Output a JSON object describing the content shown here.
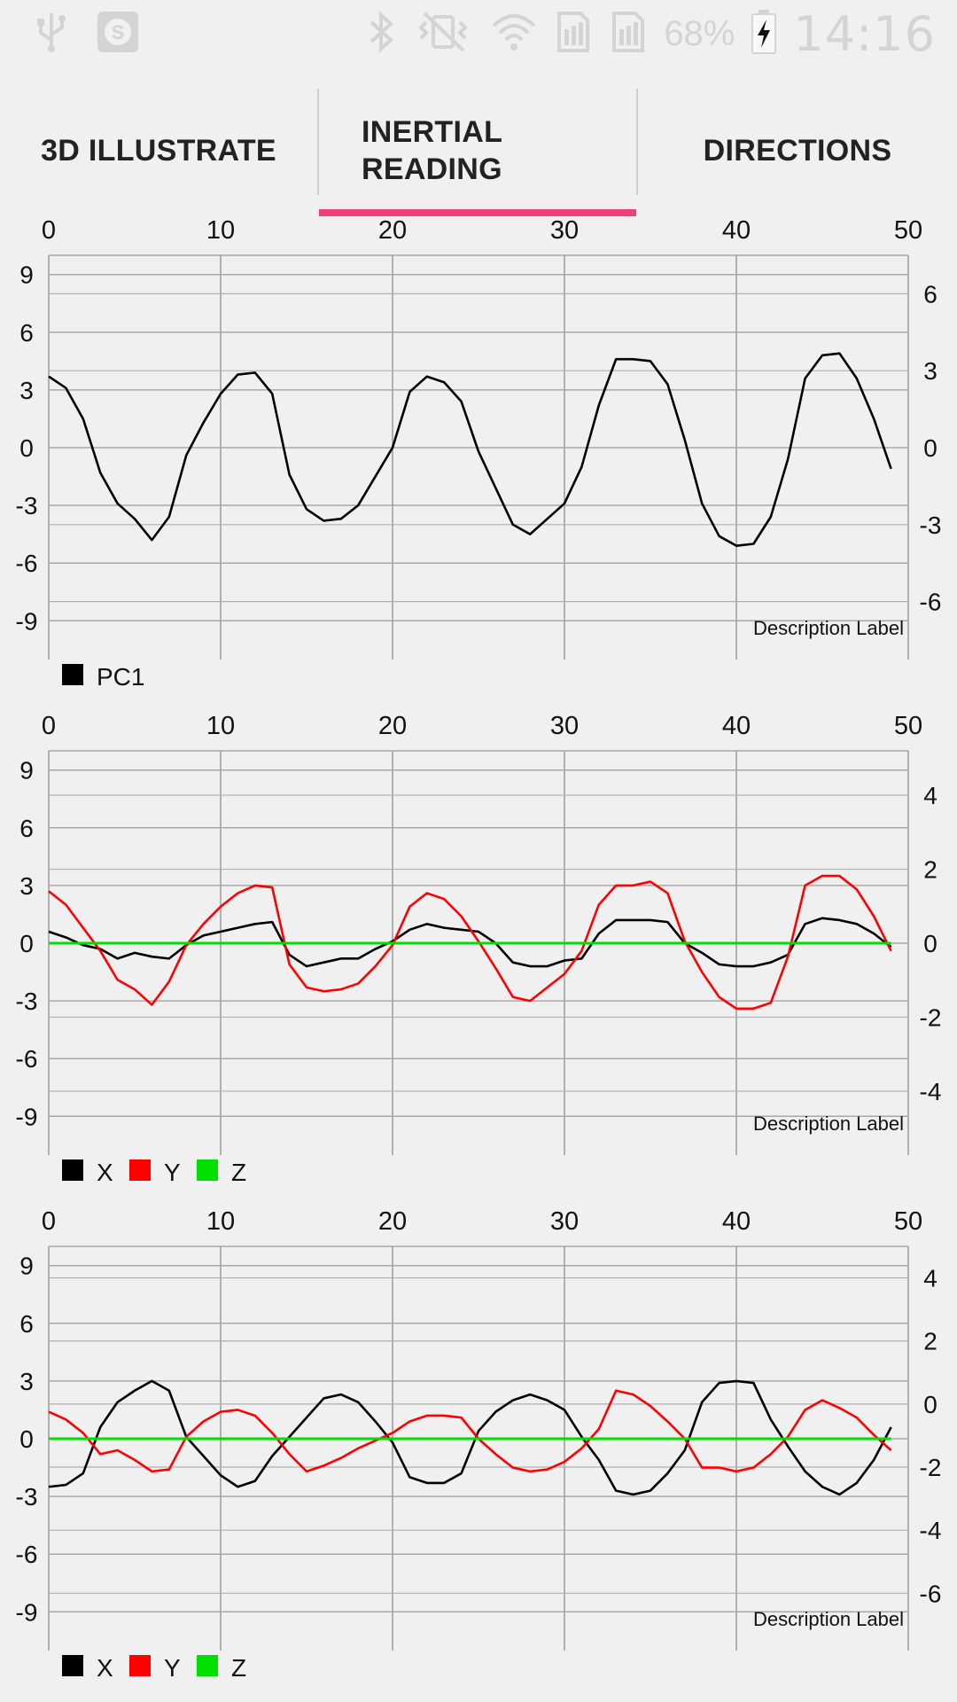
{
  "status_bar": {
    "battery": "68%",
    "time": "14:16",
    "icons": [
      "usb-icon",
      "app-s-icon",
      "bluetooth-icon",
      "vibrate-mute-icon",
      "wifi-icon",
      "sim1-signal-icon",
      "sim2-signal-icon",
      "battery-charging-icon"
    ]
  },
  "tabs": [
    {
      "label": "3D ILLUSTRATE",
      "selected": false
    },
    {
      "label": "INERTIAL READING",
      "label_line1": "INERTIAL",
      "label_line2": "READING",
      "selected": true
    },
    {
      "label": "DIRECTIONS",
      "selected": false
    }
  ],
  "colors": {
    "accent": "#f0407a",
    "series_black": "#000000",
    "series_red": "#ff0000",
    "series_green": "#00e000"
  },
  "chart_data": [
    {
      "type": "line",
      "description": "Description Label",
      "x_ticks": [
        0,
        10,
        20,
        30,
        40,
        50
      ],
      "xlim": [
        0,
        50
      ],
      "left_ticks": [
        9,
        6,
        3,
        0,
        -3,
        -6,
        -9
      ],
      "left_ylim": [
        -10,
        10
      ],
      "right_ticks": [
        6,
        3,
        0,
        -3,
        -6
      ],
      "right_ylim": [
        -7.5,
        7.5
      ],
      "legend": [
        {
          "name": "PC1",
          "color": "#000000"
        }
      ],
      "series": [
        {
          "name": "PC1",
          "color": "#000000",
          "axis": "left",
          "values": [
            3.7,
            3.1,
            1.5,
            -1.3,
            -2.9,
            -3.7,
            -4.8,
            -3.6,
            -0.4,
            1.3,
            2.8,
            3.8,
            3.9,
            2.8,
            -1.4,
            -3.2,
            -3.8,
            -3.7,
            -3.0,
            -1.5,
            0.0,
            2.9,
            3.7,
            3.4,
            2.4,
            -0.2,
            -2.1,
            -4.0,
            -4.5,
            -3.7,
            -2.9,
            -1.0,
            2.2,
            4.6,
            4.6,
            4.5,
            3.3,
            0.4,
            -2.9,
            -4.6,
            -5.1,
            -5.0,
            -3.6,
            -0.6,
            3.6,
            4.8,
            4.9,
            3.6,
            1.5,
            -1.1
          ]
        }
      ]
    },
    {
      "type": "line",
      "description": "Description Label",
      "x_ticks": [
        0,
        10,
        20,
        30,
        40,
        50
      ],
      "xlim": [
        0,
        50
      ],
      "left_ticks": [
        9,
        6,
        3,
        0,
        -3,
        -6,
        -9
      ],
      "left_ylim": [
        -10,
        10
      ],
      "right_ticks": [
        4,
        2,
        0,
        -2,
        -4
      ],
      "right_ylim": [
        -5.2,
        5.2
      ],
      "legend": [
        {
          "name": "X",
          "color": "#000000"
        },
        {
          "name": "Y",
          "color": "#ff0000"
        },
        {
          "name": "Z",
          "color": "#00e000"
        }
      ],
      "series": [
        {
          "name": "X",
          "color": "#000000",
          "axis": "left",
          "values": [
            0.6,
            0.3,
            -0.1,
            -0.3,
            -0.8,
            -0.5,
            -0.7,
            -0.8,
            -0.1,
            0.4,
            0.6,
            0.8,
            1.0,
            1.1,
            -0.6,
            -1.2,
            -1.0,
            -0.8,
            -0.8,
            -0.3,
            0.1,
            0.7,
            1.0,
            0.8,
            0.7,
            0.6,
            0.0,
            -1.0,
            -1.2,
            -1.2,
            -0.9,
            -0.8,
            0.5,
            1.2,
            1.2,
            1.2,
            1.1,
            0.0,
            -0.5,
            -1.1,
            -1.2,
            -1.2,
            -1.0,
            -0.6,
            1.0,
            1.3,
            1.2,
            1.0,
            0.5,
            -0.2
          ]
        },
        {
          "name": "Y",
          "color": "#ff0000",
          "axis": "left",
          "values": [
            2.7,
            2.0,
            0.8,
            -0.4,
            -1.9,
            -2.4,
            -3.2,
            -2.0,
            -0.1,
            1.0,
            1.9,
            2.6,
            3.0,
            2.9,
            -1.1,
            -2.3,
            -2.5,
            -2.4,
            -2.1,
            -1.2,
            -0.1,
            1.9,
            2.6,
            2.3,
            1.4,
            0.1,
            -1.3,
            -2.8,
            -3.0,
            -2.3,
            -1.6,
            -0.4,
            2.0,
            3.0,
            3.0,
            3.2,
            2.6,
            0.1,
            -1.5,
            -2.8,
            -3.4,
            -3.4,
            -3.1,
            -0.7,
            3.0,
            3.5,
            3.5,
            2.8,
            1.4,
            -0.4
          ]
        },
        {
          "name": "Z",
          "color": "#00e000",
          "axis": "left",
          "values": [
            0,
            0,
            0,
            0,
            0,
            0,
            0,
            0,
            0,
            0,
            0,
            0,
            0,
            0,
            0,
            0,
            0,
            0,
            0,
            0,
            0,
            0,
            0,
            0,
            0,
            0,
            0,
            0,
            0,
            0,
            0,
            0,
            0,
            0,
            0,
            0,
            0,
            0,
            0,
            0,
            0,
            0,
            0,
            0,
            0,
            0,
            0,
            0,
            0,
            0
          ]
        }
      ]
    },
    {
      "type": "line",
      "description": "Description Label",
      "x_ticks": [
        0,
        10,
        20,
        30,
        40,
        50
      ],
      "xlim": [
        0,
        50
      ],
      "left_ticks": [
        9,
        6,
        3,
        0,
        -3,
        -6,
        -9
      ],
      "left_ylim": [
        -10,
        10
      ],
      "right_ticks": [
        4,
        2,
        0,
        -2,
        -4,
        -6
      ],
      "right_ylim": [
        -7.2,
        5.0
      ],
      "legend": [
        {
          "name": "X",
          "color": "#000000"
        },
        {
          "name": "Y",
          "color": "#ff0000"
        },
        {
          "name": "Z",
          "color": "#00e000"
        }
      ],
      "series": [
        {
          "name": "X",
          "color": "#000000",
          "axis": "left",
          "values": [
            -2.5,
            -2.4,
            -1.8,
            0.6,
            1.9,
            2.5,
            3.0,
            2.5,
            0.1,
            -0.9,
            -1.9,
            -2.5,
            -2.2,
            -0.9,
            0.1,
            1.1,
            2.1,
            2.3,
            1.9,
            0.9,
            -0.2,
            -2.0,
            -2.3,
            -2.3,
            -1.8,
            0.4,
            1.4,
            2.0,
            2.3,
            2.0,
            1.5,
            0.1,
            -1.1,
            -2.7,
            -2.9,
            -2.7,
            -1.8,
            -0.6,
            1.9,
            2.9,
            3.0,
            2.9,
            1.0,
            -0.4,
            -1.7,
            -2.5,
            -2.9,
            -2.3,
            -1.1,
            0.6
          ]
        },
        {
          "name": "Y",
          "color": "#ff0000",
          "axis": "left",
          "values": [
            1.4,
            1.0,
            0.3,
            -0.8,
            -0.6,
            -1.1,
            -1.7,
            -1.6,
            0.1,
            0.9,
            1.4,
            1.5,
            1.2,
            0.3,
            -0.8,
            -1.7,
            -1.4,
            -1.0,
            -0.5,
            -0.1,
            0.3,
            0.9,
            1.2,
            1.2,
            1.1,
            0.0,
            -0.8,
            -1.5,
            -1.7,
            -1.6,
            -1.2,
            -0.5,
            0.5,
            2.5,
            2.3,
            1.7,
            0.9,
            0.0,
            -1.5,
            -1.5,
            -1.7,
            -1.5,
            -0.8,
            0.1,
            1.5,
            2.0,
            1.6,
            1.1,
            0.2,
            -0.6
          ]
        },
        {
          "name": "Z",
          "color": "#00e000",
          "axis": "left",
          "values": [
            0,
            0,
            0,
            0,
            0,
            0,
            0,
            0,
            0,
            0,
            0,
            0,
            0,
            0,
            0,
            0,
            0,
            0,
            0,
            0,
            0,
            0,
            0,
            0,
            0,
            0,
            0,
            0,
            0,
            0,
            0,
            0,
            0,
            0,
            0,
            0,
            0,
            0,
            0,
            0,
            0,
            0,
            0,
            0,
            0,
            0,
            0,
            0,
            0,
            0
          ]
        }
      ]
    }
  ]
}
